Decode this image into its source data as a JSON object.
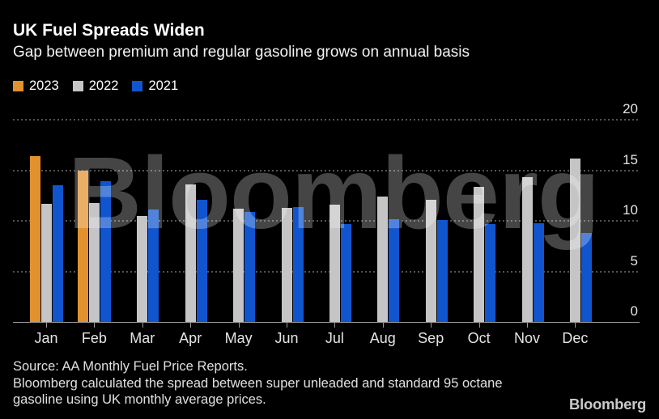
{
  "header": {
    "title": "UK Fuel Spreads Widen",
    "subtitle": "Gap between premium and regular gasoline grows on annual basis"
  },
  "watermark": "Bloomberg",
  "chart_data": {
    "type": "bar",
    "title": "UK Fuel Spreads Widen",
    "subtitle": "Gap between premium and regular gasoline grows on annual basis",
    "categories": [
      "Jan",
      "Feb",
      "Mar",
      "Apr",
      "May",
      "Jun",
      "Jul",
      "Aug",
      "Sep",
      "Oct",
      "Nov",
      "Dec"
    ],
    "series": [
      {
        "name": "2023",
        "color": "#e2912f",
        "values": [
          16.4,
          15.0,
          null,
          null,
          null,
          null,
          null,
          null,
          null,
          null,
          null,
          null
        ]
      },
      {
        "name": "2022",
        "color": "#c5c5c7",
        "values": [
          11.7,
          11.8,
          10.5,
          13.6,
          11.2,
          11.3,
          11.6,
          12.4,
          12.1,
          13.4,
          14.3,
          16.2
        ]
      },
      {
        "name": "2021",
        "color": "#1155ce",
        "values": [
          13.5,
          13.9,
          11.1,
          12.1,
          10.9,
          11.4,
          9.7,
          10.2,
          10.1,
          9.7,
          9.8,
          8.8
        ]
      }
    ],
    "xlabel": "",
    "ylabel": "",
    "ylim": [
      0,
      20
    ],
    "yticks": [
      0,
      5,
      10,
      15,
      20
    ],
    "y_axis_side": "right",
    "grid": "horizontal-dotted",
    "legend_position": "top-left"
  },
  "footer": {
    "line1": "Source: AA Monthly Fuel Price Reports.",
    "line2": "Bloomberg calculated the spread between super unleaded and standard 95 octane",
    "line3": "gasoline using UK monthly average prices.",
    "brand": "Bloomberg"
  },
  "colors": {
    "background": "#000000",
    "title_text": "#ffffff",
    "axis": "#9a9a9a",
    "gridline": "#545454",
    "tick_label": "#e4e4e4",
    "series_2023": "#e2912f",
    "series_2022": "#c5c5c7",
    "series_2021": "#1155ce",
    "watermark": "rgba(255,255,255,0.27)"
  }
}
